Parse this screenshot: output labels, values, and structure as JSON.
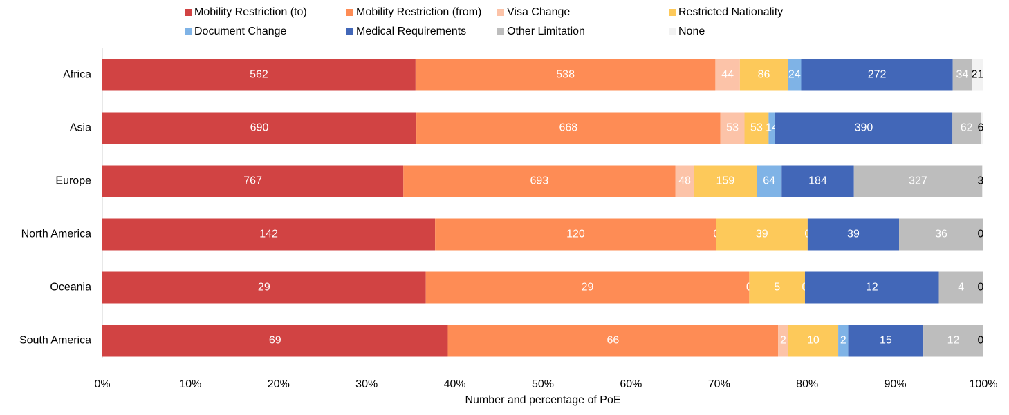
{
  "chart_data": {
    "type": "bar",
    "orientation": "horizontal",
    "stacking": "percent",
    "x_label": "Number and percentage of PoE",
    "categories": [
      "Africa",
      "Asia",
      "Europe",
      "North America",
      "Oceania",
      "South America"
    ],
    "series": [
      {
        "name": "Mobility Restriction (to)",
        "color": "#d14343",
        "label_color": "#ffffff",
        "values": [
          562,
          690,
          767,
          142,
          29,
          69
        ]
      },
      {
        "name": "Mobility Restriction (from)",
        "color": "#fe8c55",
        "label_color": "#ffffff",
        "values": [
          538,
          668,
          693,
          120,
          29,
          66
        ]
      },
      {
        "name": "Visa Change",
        "color": "#fcc3a8",
        "label_color": "#ffffff",
        "values": [
          44,
          53,
          48,
          0,
          0,
          2
        ]
      },
      {
        "name": "Restricted Nationality",
        "color": "#fdc95a",
        "label_color": "#ffffff",
        "values": [
          86,
          53,
          159,
          39,
          5,
          10
        ]
      },
      {
        "name": "Document Change",
        "color": "#7fb3e6",
        "label_color": "#ffffff",
        "values": [
          24,
          14,
          64,
          0,
          0,
          2
        ]
      },
      {
        "name": "Medical Requirements",
        "color": "#4267b8",
        "label_color": "#ffffff",
        "values": [
          272,
          390,
          184,
          39,
          12,
          15
        ]
      },
      {
        "name": "Other Limitation",
        "color": "#bdbdbd",
        "label_color": "#ffffff",
        "values": [
          34,
          62,
          327,
          36,
          4,
          12
        ]
      },
      {
        "name": "None",
        "color": "#f2f2f2",
        "label_color": "#000000",
        "values": [
          21,
          6,
          3,
          0,
          0,
          0
        ]
      }
    ],
    "xlim": [
      0,
      100
    ],
    "xticks": [
      {
        "value": 0,
        "label": "0%"
      },
      {
        "value": 10,
        "label": "10%"
      },
      {
        "value": 20,
        "label": "20%"
      },
      {
        "value": 30,
        "label": "30%"
      },
      {
        "value": 40,
        "label": "40%"
      },
      {
        "value": 50,
        "label": "50%"
      },
      {
        "value": 60,
        "label": "60%"
      },
      {
        "value": 70,
        "label": "70%"
      },
      {
        "value": 80,
        "label": "80%"
      },
      {
        "value": 90,
        "label": "90%"
      },
      {
        "value": 100,
        "label": "100%"
      }
    ],
    "legend": "top",
    "grid": false
  }
}
